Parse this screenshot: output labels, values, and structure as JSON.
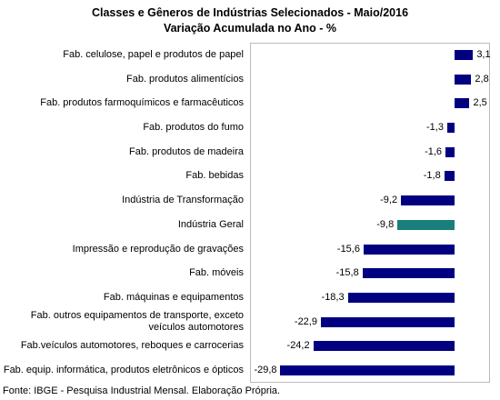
{
  "chart_data": {
    "type": "bar",
    "orientation": "horizontal",
    "title": "Classes e Gêneros de Indústrias Selecionados - Maio/2016",
    "subtitle": "Variação Acumulada no Ano - %",
    "categories": [
      "Fab. celulose, papel e produtos de papel",
      "Fab. produtos alimentícios",
      "Fab. produtos farmoquímicos e farmacêuticos",
      "Fab. produtos do fumo",
      "Fab. produtos de madeira",
      "Fab. bebidas",
      "Indústria de Transformação",
      "Indústria Geral",
      "Impressão e reprodução de gravações",
      "Fab. móveis",
      "Fab. máquinas e equipamentos",
      "Fab. outros equipamentos de transporte, exceto veículos automotores",
      "Fab.veículos automotores, reboques e carrocerias",
      "Fab. equip. informática, produtos eletrônicos e ópticos"
    ],
    "values": [
      3.1,
      2.8,
      2.5,
      -1.3,
      -1.6,
      -1.8,
      -9.2,
      -9.8,
      -15.6,
      -15.8,
      -18.3,
      -22.9,
      -24.2,
      -29.8
    ],
    "value_labels": [
      "3,1",
      "2,8",
      "2,5",
      "-1,3",
      "-1,6",
      "-1,8",
      "-9,2",
      "-9,8",
      "-15,6",
      "-15,8",
      "-18,3",
      "-22,9",
      "-24,2",
      "-29,8"
    ],
    "colors": [
      "#000080",
      "#000080",
      "#000080",
      "#000080",
      "#000080",
      "#000080",
      "#000080",
      "#1a7f7a",
      "#000080",
      "#000080",
      "#000080",
      "#000080",
      "#000080",
      "#000080"
    ],
    "xlim": [
      -35,
      6
    ],
    "source": "Fonte: IBGE - Pesquisa Industrial Mensal. Elaboração Própria."
  }
}
